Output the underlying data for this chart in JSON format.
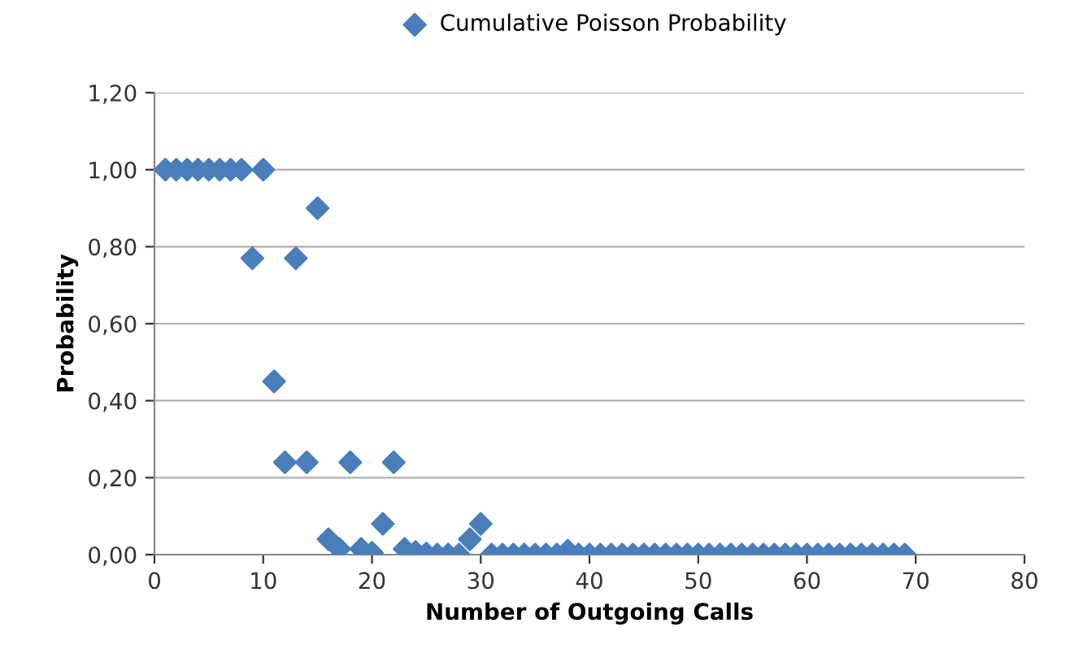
{
  "chart_data": {
    "type": "scatter",
    "xlabel": "Number of Outgoing Calls",
    "ylabel": "Probability",
    "x": [
      1,
      2,
      3,
      4,
      5,
      6,
      7,
      8,
      9,
      10,
      11,
      12,
      13,
      14,
      15,
      16,
      17,
      18,
      19,
      20,
      21,
      22,
      23,
      24,
      25,
      26,
      27,
      28,
      29,
      30,
      31,
      32,
      33,
      34,
      35,
      36,
      37,
      38,
      39,
      40,
      41,
      42,
      43,
      44,
      45,
      46,
      47,
      48,
      49,
      50,
      51,
      52,
      53,
      54,
      55,
      56,
      57,
      58,
      59,
      60,
      61,
      62,
      63,
      64,
      65,
      66,
      67,
      68,
      69
    ],
    "series": [
      {
        "name": "Cumulative Poisson Probability",
        "color": "#4a7ebb",
        "values": [
          1.0,
          1.0,
          1.0,
          1.0,
          1.0,
          1.0,
          1.0,
          1.0,
          0.77,
          1.0,
          0.45,
          0.24,
          0.77,
          0.24,
          0.9,
          0.04,
          0.015,
          0.24,
          0.015,
          0.005,
          0.08,
          0.24,
          0.015,
          0.007,
          0.003,
          0.0,
          0.0,
          0.0,
          0.04,
          0.08,
          0,
          0,
          0,
          0,
          0,
          0,
          0,
          0.01,
          0,
          0,
          0,
          0,
          0,
          0,
          0,
          0,
          0,
          0,
          0,
          0,
          0,
          0,
          0,
          0,
          0,
          0,
          0,
          0,
          0,
          0,
          0,
          0,
          0,
          0,
          0,
          0,
          0,
          0,
          0
        ]
      }
    ],
    "xlim": [
      0,
      80
    ],
    "xticks": [
      0,
      10,
      20,
      30,
      40,
      50,
      60,
      70,
      80
    ],
    "ylim": [
      0,
      1.2
    ],
    "yticks": [
      {
        "value": 0,
        "label": "0,00"
      },
      {
        "value": 0.2,
        "label": "0,20"
      },
      {
        "value": 0.4,
        "label": "0,40"
      },
      {
        "value": 0.6,
        "label": "0,60"
      },
      {
        "value": 0.8,
        "label": "0,80"
      },
      {
        "value": 1.0,
        "label": "1,00"
      },
      {
        "value": 1.2,
        "label": "1,20"
      }
    ],
    "grid": "y",
    "legend": "top",
    "marker": "diamond"
  }
}
